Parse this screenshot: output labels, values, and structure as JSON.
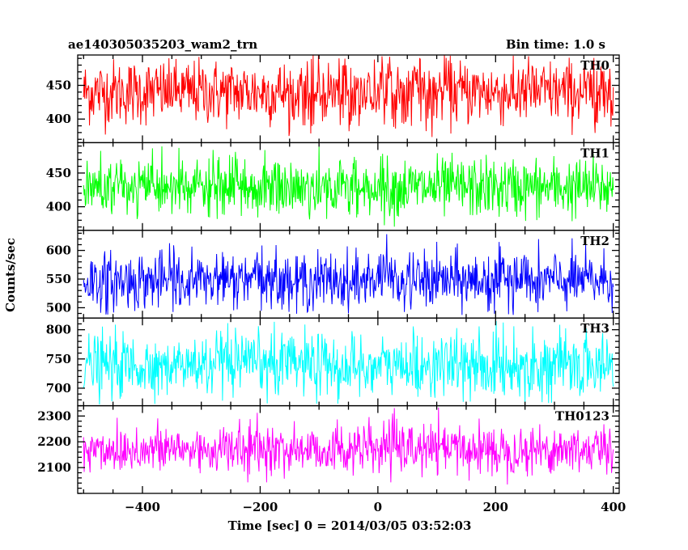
{
  "chart_data": {
    "type": "line",
    "title": "ae140305035203_wam2_trn",
    "bin_time_label": "Bin time: 1.0 s",
    "xlabel": "Time [sec] 0 = 2014/03/05 03:52:03",
    "ylabel": "Counts/sec",
    "xlim": [
      -510,
      410
    ],
    "x_ticks": [
      -400,
      -200,
      0,
      200,
      400
    ],
    "x_tick_labels": [
      "−400",
      "−200",
      "0",
      "200",
      "400"
    ],
    "x_range": [
      -500,
      400
    ],
    "grid": false,
    "panels": [
      {
        "name": "TH0",
        "color": "#ff0000",
        "ylim": [
          365,
          495
        ],
        "yticks": [
          400,
          450
        ],
        "ytick_labels": [
          "400",
          "450"
        ],
        "mean": 440,
        "noise": 24,
        "min": 372,
        "max": 495
      },
      {
        "name": "TH1",
        "color": "#00ff00",
        "ylim": [
          365,
          495
        ],
        "yticks": [
          400,
          450
        ],
        "ytick_labels": [
          "400",
          "450"
        ],
        "mean": 428,
        "noise": 22,
        "min": 370,
        "max": 493
      },
      {
        "name": "TH2",
        "color": "#0000ff",
        "ylim": [
          482,
          635
        ],
        "yticks": [
          500,
          550,
          600
        ],
        "ytick_labels": [
          "500",
          "550",
          "600"
        ],
        "mean": 547,
        "noise": 25,
        "min": 487,
        "max": 632
      },
      {
        "name": "TH3",
        "color": "#00ffff",
        "ylim": [
          670,
          820
        ],
        "yticks": [
          700,
          750,
          800
        ],
        "ytick_labels": [
          "700",
          "750",
          "800"
        ],
        "mean": 738,
        "noise": 27,
        "min": 672,
        "max": 818
      },
      {
        "name": "TH0123",
        "color": "#ff00ff",
        "ylim": [
          2000,
          2340
        ],
        "yticks": [
          2100,
          2200,
          2300
        ],
        "ytick_labels": [
          "2100",
          "2200",
          "2300"
        ],
        "mean": 2170,
        "noise": 48,
        "min": 2004,
        "max": 2335
      }
    ]
  }
}
